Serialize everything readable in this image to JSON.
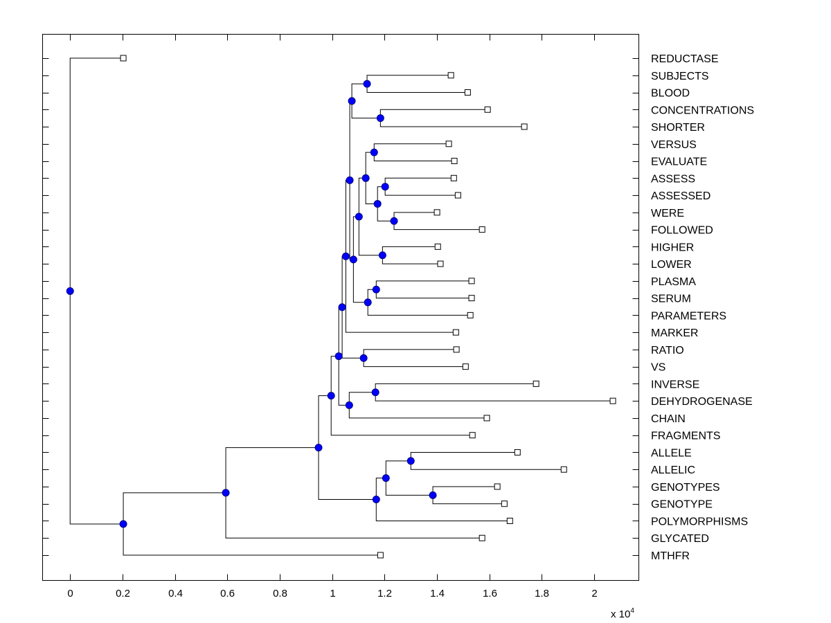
{
  "chart_data": {
    "type": "dendrogram",
    "title": "",
    "xlabel": "",
    "ylabel": "",
    "x_multiplier_label": "x 10",
    "x_multiplier_exponent": "4",
    "xlim": [
      -0.105,
      2.17
    ],
    "xticks": [
      0,
      0.2,
      0.4,
      0.6,
      0.8,
      1,
      1.2,
      1.4,
      1.6,
      1.8,
      2
    ],
    "xtick_labels": [
      "0",
      "0.2",
      "0.4",
      "0.6",
      "0.8",
      "1",
      "1.2",
      "1.4",
      "1.6",
      "1.8",
      "2"
    ],
    "grid": false,
    "colors": {
      "node_fill": "#0000ff",
      "node_edge": "#00007f",
      "line": "#000000",
      "leaf_fill": "#ffffff"
    },
    "leaves": [
      {
        "label": "REDUCTASE",
        "x": 0.203
      },
      {
        "label": "SUBJECTS",
        "x": 1.453
      },
      {
        "label": "BLOOD",
        "x": 1.517
      },
      {
        "label": "CONCENTRATIONS",
        "x": 1.593
      },
      {
        "label": "SHORTER",
        "x": 1.733
      },
      {
        "label": "VERSUS",
        "x": 1.445
      },
      {
        "label": "EVALUATE",
        "x": 1.466
      },
      {
        "label": "ASSESS",
        "x": 1.464
      },
      {
        "label": "ASSESSED",
        "x": 1.48
      },
      {
        "label": "WERE",
        "x": 1.4
      },
      {
        "label": "FOLLOWED",
        "x": 1.572
      },
      {
        "label": "HIGHER",
        "x": 1.403
      },
      {
        "label": "LOWER",
        "x": 1.413
      },
      {
        "label": "PLASMA",
        "x": 1.532
      },
      {
        "label": "SERUM",
        "x": 1.532
      },
      {
        "label": "PARAMETERS",
        "x": 1.527
      },
      {
        "label": "MARKER",
        "x": 1.472
      },
      {
        "label": "RATIO",
        "x": 1.474
      },
      {
        "label": "VS",
        "x": 1.509
      },
      {
        "label": "INVERSE",
        "x": 1.778
      },
      {
        "label": "DEHYDROGENASE",
        "x": 2.071
      },
      {
        "label": "CHAIN",
        "x": 1.59
      },
      {
        "label": "FRAGMENTS",
        "x": 1.535
      },
      {
        "label": "ALLELE",
        "x": 1.707
      },
      {
        "label": "ALLELIC",
        "x": 1.884
      },
      {
        "label": "GENOTYPES",
        "x": 1.63
      },
      {
        "label": "GENOTYPE",
        "x": 1.657
      },
      {
        "label": "POLYMORPHISMS",
        "x": 1.678
      },
      {
        "label": "GLYCATED",
        "x": 1.572
      },
      {
        "label": "MTHFR",
        "x": 1.184
      }
    ],
    "nodes": [
      {
        "id": "n1",
        "x": 1.133,
        "children": [
          "SUBJECTS",
          "BLOOD"
        ]
      },
      {
        "id": "n2",
        "x": 1.184,
        "children": [
          "CONCENTRATIONS",
          "SHORTER"
        ]
      },
      {
        "id": "n3",
        "x": 1.075,
        "children": [
          "n1",
          "n2"
        ]
      },
      {
        "id": "n4",
        "x": 1.16,
        "children": [
          "VERSUS",
          "EVALUATE"
        ]
      },
      {
        "id": "n5",
        "x": 1.202,
        "children": [
          "ASSESS",
          "ASSESSED"
        ]
      },
      {
        "id": "n6",
        "x": 1.236,
        "children": [
          "WERE",
          "FOLLOWED"
        ]
      },
      {
        "id": "n7",
        "x": 1.173,
        "children": [
          "n5",
          "n6"
        ]
      },
      {
        "id": "n8",
        "x": 1.128,
        "children": [
          "n4",
          "n7"
        ]
      },
      {
        "id": "n9",
        "x": 1.192,
        "children": [
          "HIGHER",
          "LOWER"
        ]
      },
      {
        "id": "n10",
        "x": 1.102,
        "children": [
          "n8",
          "n9"
        ]
      },
      {
        "id": "n11",
        "x": 1.168,
        "children": [
          "PLASMA",
          "SERUM"
        ]
      },
      {
        "id": "n12",
        "x": 1.136,
        "children": [
          "n11",
          "PARAMETERS"
        ]
      },
      {
        "id": "n13",
        "x": 1.081,
        "children": [
          "n10",
          "n12"
        ]
      },
      {
        "id": "n14",
        "x": 1.067,
        "children": [
          "n3",
          "n13"
        ]
      },
      {
        "id": "n15",
        "x": 1.052,
        "children": [
          "n14",
          "MARKER"
        ]
      },
      {
        "id": "n16",
        "x": 1.12,
        "children": [
          "RATIO",
          "VS"
        ]
      },
      {
        "id": "n17",
        "x": 1.038,
        "children": [
          "n15",
          "n16"
        ]
      },
      {
        "id": "n18",
        "x": 1.165,
        "children": [
          "INVERSE",
          "DEHYDROGENASE"
        ]
      },
      {
        "id": "n19",
        "x": 1.065,
        "children": [
          "n18",
          "CHAIN"
        ]
      },
      {
        "id": "n20",
        "x": 1.025,
        "children": [
          "n17",
          "n19"
        ]
      },
      {
        "id": "n21",
        "x": 0.996,
        "children": [
          "n20",
          "FRAGMENTS"
        ]
      },
      {
        "id": "n22",
        "x": 1.3,
        "children": [
          "ALLELE",
          "ALLELIC"
        ]
      },
      {
        "id": "n23",
        "x": 1.384,
        "children": [
          "GENOTYPES",
          "GENOTYPE"
        ]
      },
      {
        "id": "n24",
        "x": 1.205,
        "children": [
          "n22",
          "n23"
        ]
      },
      {
        "id": "n25",
        "x": 1.168,
        "children": [
          "n24",
          "POLYMORPHISMS"
        ]
      },
      {
        "id": "n26",
        "x": 0.948,
        "children": [
          "n21",
          "n25"
        ]
      },
      {
        "id": "n27",
        "x": 0.594,
        "children": [
          "n26",
          "GLYCATED"
        ]
      },
      {
        "id": "n28",
        "x": 0.203,
        "children": [
          "n27",
          "MTHFR"
        ]
      },
      {
        "id": "root",
        "x": 0.0,
        "children": [
          "REDUCTASE",
          "n28"
        ]
      }
    ]
  }
}
